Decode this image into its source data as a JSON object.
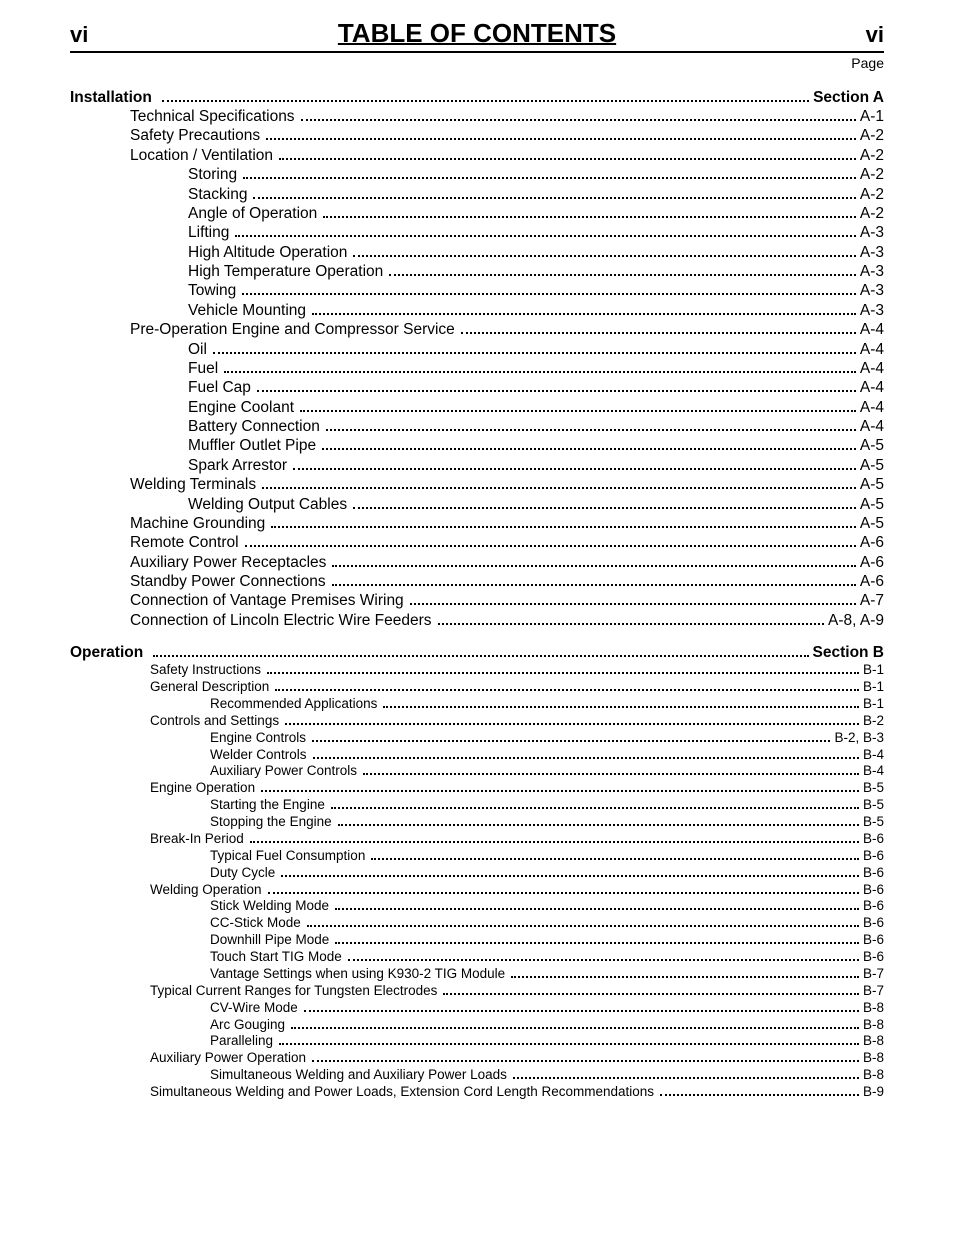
{
  "header": {
    "left": "vi",
    "title": "TABLE OF CONTENTS",
    "right": "vi",
    "page_label": "Page"
  },
  "sections": [
    {
      "title": "Installation",
      "section_label": "Section A",
      "size": "large",
      "entries": [
        {
          "indent": 1,
          "label": "Technical Specifications",
          "page": "A-1"
        },
        {
          "indent": 1,
          "label": "Safety Precautions",
          "page": "A-2"
        },
        {
          "indent": 1,
          "label": "Location / Ventilation",
          "page": "A-2"
        },
        {
          "indent": 2,
          "label": "Storing",
          "page": "A-2"
        },
        {
          "indent": 2,
          "label": "Stacking",
          "page": "A-2"
        },
        {
          "indent": 2,
          "label": "Angle of Operation",
          "page": "A-2"
        },
        {
          "indent": 2,
          "label": "Lifting",
          "page": "A-3"
        },
        {
          "indent": 2,
          "label": "High Altitude Operation",
          "page": "A-3"
        },
        {
          "indent": 2,
          "label": "High Temperature Operation",
          "page": "A-3"
        },
        {
          "indent": 2,
          "label": "Towing",
          "page": "A-3"
        },
        {
          "indent": 2,
          "label": "Vehicle Mounting",
          "page": "A-3"
        },
        {
          "indent": 1,
          "label": "Pre-Operation Engine and Compressor Service",
          "page": "A-4"
        },
        {
          "indent": 2,
          "label": "Oil",
          "page": "A-4"
        },
        {
          "indent": 2,
          "label": "Fuel",
          "page": "A-4"
        },
        {
          "indent": 2,
          "label": "Fuel Cap",
          "page": "A-4"
        },
        {
          "indent": 2,
          "label": "Engine Coolant",
          "page": "A-4"
        },
        {
          "indent": 2,
          "label": "Battery Connection",
          "page": "A-4"
        },
        {
          "indent": 2,
          "label": "Muffler Outlet Pipe",
          "page": "A-5"
        },
        {
          "indent": 2,
          "label": "Spark Arrestor",
          "page": "A-5"
        },
        {
          "indent": 1,
          "label": "Welding Terminals",
          "page": "A-5"
        },
        {
          "indent": 2,
          "label": "Welding Output Cables",
          "page": "A-5"
        },
        {
          "indent": 1,
          "label": "Machine Grounding",
          "page": "A-5"
        },
        {
          "indent": 1,
          "label": "Remote Control",
          "page": "A-6"
        },
        {
          "indent": 1,
          "label": "Auxiliary Power Receptacles",
          "page": "A-6"
        },
        {
          "indent": 1,
          "label": "Standby Power Connections",
          "page": "A-6"
        },
        {
          "indent": 1,
          "label": "Connection of Vantage Premises Wiring",
          "page": "A-7"
        },
        {
          "indent": 1,
          "label": "Connection of Lincoln Electric Wire Feeders",
          "page": "A-8, A-9"
        }
      ]
    },
    {
      "title": "Operation",
      "section_label": "Section B",
      "size": "small",
      "entries": [
        {
          "indent": 1,
          "label": "Safety Instructions",
          "page": "B-1"
        },
        {
          "indent": 1,
          "label": "General Description",
          "page": "B-1"
        },
        {
          "indent": 2,
          "label": "Recommended Applications",
          "page": "B-1"
        },
        {
          "indent": 1,
          "label": "Controls and Settings",
          "page": "B-2"
        },
        {
          "indent": 2,
          "label": "Engine Controls",
          "page": "B-2, B-3"
        },
        {
          "indent": 2,
          "label": "Welder Controls",
          "page": "B-4"
        },
        {
          "indent": 2,
          "label": "Auxiliary Power Controls",
          "page": "B-4"
        },
        {
          "indent": 1,
          "label": "Engine Operation",
          "page": "B-5"
        },
        {
          "indent": 2,
          "label": "Starting the Engine",
          "page": "B-5"
        },
        {
          "indent": 2,
          "label": "Stopping the Engine",
          "page": "B-5"
        },
        {
          "indent": 1,
          "label": "Break-In Period",
          "page": "B-6"
        },
        {
          "indent": 2,
          "label": "Typical Fuel Consumption",
          "page": "B-6"
        },
        {
          "indent": 2,
          "label": "Duty Cycle",
          "page": "B-6"
        },
        {
          "indent": 1,
          "label": "Welding Operation",
          "page": "B-6"
        },
        {
          "indent": 2,
          "label": "Stick Welding Mode",
          "page": "B-6"
        },
        {
          "indent": 2,
          "label": "CC-Stick Mode",
          "page": "B-6"
        },
        {
          "indent": 2,
          "label": "Downhill Pipe Mode",
          "page": "B-6"
        },
        {
          "indent": 2,
          "label": "Touch Start TIG Mode",
          "page": "B-6"
        },
        {
          "indent": 2,
          "label": "Vantage Settings when using K930-2 TIG Module",
          "page": "B-7"
        },
        {
          "indent": 1,
          "label": "Typical Current Ranges for Tungsten Electrodes",
          "page": "B-7"
        },
        {
          "indent": 2,
          "label": "CV-Wire Mode",
          "page": "B-8"
        },
        {
          "indent": 2,
          "label": "Arc Gouging",
          "page": "B-8"
        },
        {
          "indent": 2,
          "label": "Paralleling",
          "page": "B-8"
        },
        {
          "indent": 1,
          "label": "Auxiliary Power Operation",
          "page": "B-8"
        },
        {
          "indent": 2,
          "label": "Simultaneous Welding and Auxiliary Power Loads",
          "page": "B-8"
        },
        {
          "indent": 1,
          "label": "Simultaneous Welding and Power Loads, Extension Cord Length Recommendations",
          "page": "B-9"
        }
      ]
    }
  ]
}
